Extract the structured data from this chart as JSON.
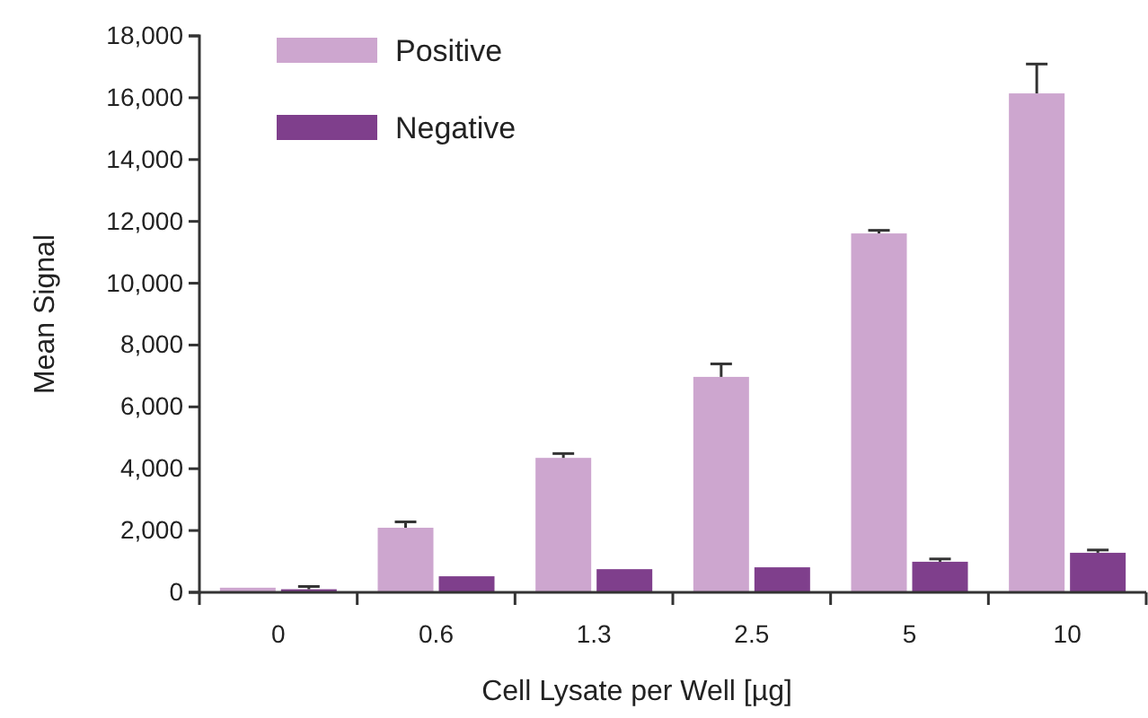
{
  "chart_data": {
    "type": "bar",
    "xlabel": "Cell Lysate per Well [µg]",
    "ylabel": "Mean Signal",
    "categories": [
      "0",
      "0.6",
      "1.3",
      "2.5",
      "5",
      "10"
    ],
    "series": [
      {
        "name": "Positive",
        "color": "#cda6cf",
        "values": [
          150,
          2090,
          4350,
          6970,
          11610,
          16140
        ],
        "errors": [
          null,
          [
            2090,
            2280
          ],
          [
            4350,
            4490
          ],
          [
            6970,
            7390
          ],
          [
            11610,
            11710
          ],
          [
            16140,
            17090
          ]
        ]
      },
      {
        "name": "Negative",
        "color": "#7f3f8c",
        "values": [
          100,
          520,
          750,
          810,
          990,
          1280
        ],
        "errors": [
          [
            100,
            190
          ],
          null,
          null,
          null,
          [
            990,
            1080
          ],
          [
            1280,
            1370
          ]
        ]
      }
    ],
    "ylim": [
      0,
      18000
    ],
    "yticks": [
      {
        "value": 0,
        "label": "0"
      },
      {
        "value": 2000,
        "label": "2,000"
      },
      {
        "value": 4000,
        "label": "4,000"
      },
      {
        "value": 6000,
        "label": "6,000"
      },
      {
        "value": 8000,
        "label": "8,000"
      },
      {
        "value": 10000,
        "label": "10,000"
      },
      {
        "value": 12000,
        "label": "12,000"
      },
      {
        "value": 14000,
        "label": "14,000"
      },
      {
        "value": 16000,
        "label": "16,000"
      },
      {
        "value": 18000,
        "label": "18,000"
      }
    ],
    "grid": false,
    "legend": "top left"
  }
}
